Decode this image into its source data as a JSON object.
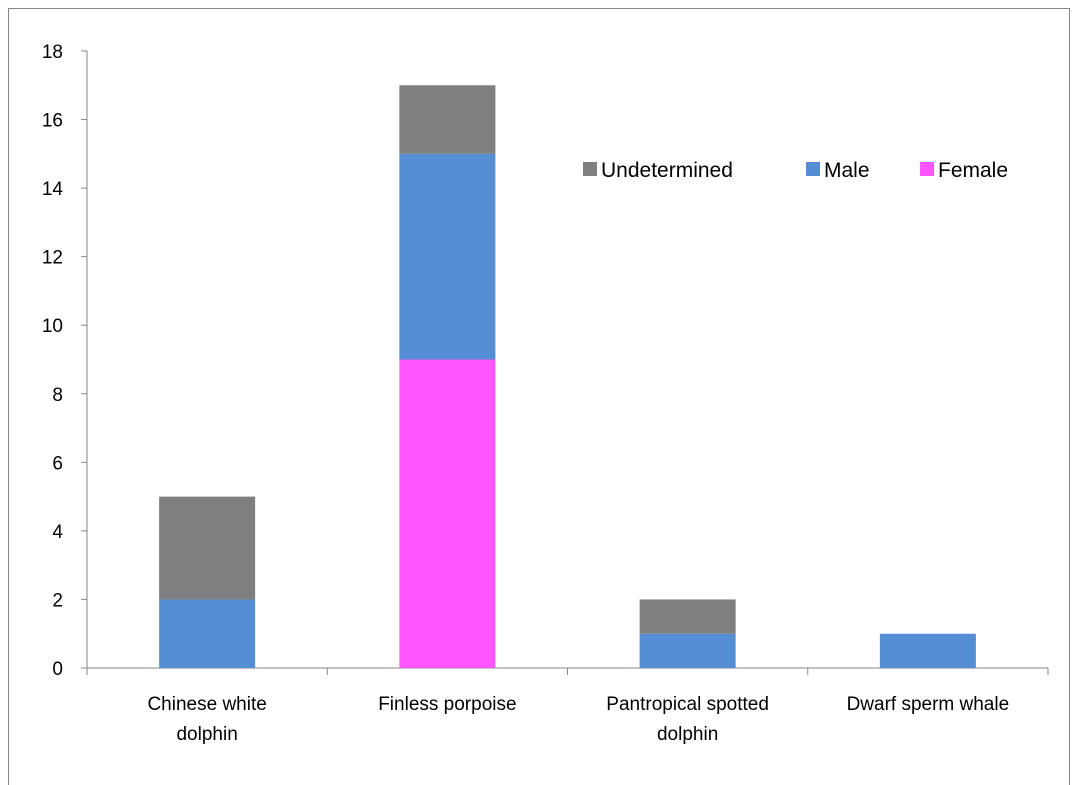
{
  "chart_data": {
    "type": "bar",
    "stacked": true,
    "categories": [
      [
        "Chinese white",
        "dolphin"
      ],
      [
        "Finless porpoise"
      ],
      [
        "Pantropical spotted",
        "dolphin"
      ],
      [
        "Dwarf sperm whale"
      ]
    ],
    "series": [
      {
        "name": "Female",
        "color": "#ff55ff",
        "values": [
          0,
          9,
          0,
          0
        ]
      },
      {
        "name": "Male",
        "color": "#558ed5",
        "values": [
          2,
          6,
          1,
          1
        ]
      },
      {
        "name": "Undetermined",
        "color": "#7f7f7f",
        "values": [
          3,
          2,
          1,
          0
        ]
      }
    ],
    "legend_order": [
      "Undetermined",
      "Male",
      "Female"
    ],
    "legend_position": "top-right",
    "ylim": [
      0,
      18
    ],
    "yticks": [
      0,
      2,
      4,
      6,
      8,
      10,
      12,
      14,
      16,
      18
    ],
    "grid": false,
    "title": "",
    "xlabel": "",
    "ylabel": ""
  }
}
